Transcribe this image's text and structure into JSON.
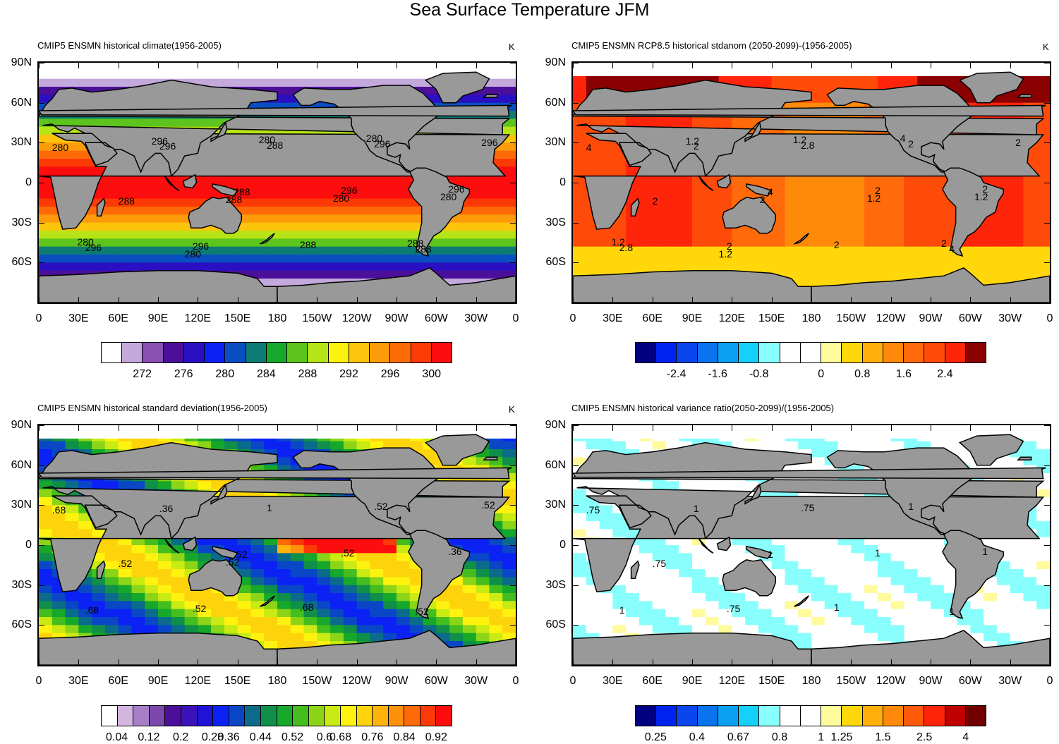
{
  "title": "Sea Surface Temperature JFM",
  "lat_ticks": [
    "90N",
    "60N",
    "30N",
    "0",
    "30S",
    "60S"
  ],
  "lon_ticks": [
    "0",
    "30E",
    "60E",
    "90E",
    "120E",
    "150E",
    "180",
    "150W",
    "120W",
    "90W",
    "60W",
    "30W",
    "0"
  ],
  "panels": [
    {
      "id": "climate",
      "title": "CMIP5 ENSMN historical climate(1956-2005)",
      "units": "K",
      "colorbar": {
        "colors": [
          "#ffffff",
          "#c4a9dc",
          "#8a4fb3",
          "#4b0f99",
          "#2b0fc2",
          "#0c22f5",
          "#0a4fc2",
          "#0c7b74",
          "#15a82a",
          "#5cc41d",
          "#b6e416",
          "#fdf20f",
          "#fdc40c",
          "#fd9b0a",
          "#fd6a07",
          "#fc3a06",
          "#fd0d0d"
        ],
        "labels": [
          "272",
          "276",
          "280",
          "284",
          "288",
          "292",
          "296",
          "300"
        ]
      },
      "contour_labels": [
        "280",
        "288",
        "288",
        "296",
        "296",
        "296",
        "288",
        "296",
        "296",
        "296",
        "288",
        "288",
        "296",
        "288",
        "288",
        "296",
        "280",
        "280",
        "280",
        "280",
        "280",
        "280"
      ]
    },
    {
      "id": "stdanom",
      "title": "CMIP5 ENSMN RCP8.5 historical stdanom (2050-2099)-(1956-2005)",
      "units": "K",
      "colorbar": {
        "colors": [
          "#000080",
          "#0022ee",
          "#0a45ee",
          "#0a73ee",
          "#0a9ff0",
          "#15d0f8",
          "#88fffd",
          "#ffffff",
          "#ffffff",
          "#fffa9a",
          "#ffd70a",
          "#ffae0a",
          "#ff8a0a",
          "#ff6a0a",
          "#ff4b0a",
          "#ff250a",
          "#8b0000"
        ],
        "labels": [
          "-2.4",
          "-1.6",
          "-0.8",
          "0",
          "0.8",
          "1.6",
          "2.4"
        ]
      },
      "contour_labels": [
        "4",
        "4",
        "4",
        "2",
        "2",
        "2.8",
        "2.8",
        "2",
        "2",
        "2",
        "2",
        "2",
        "2",
        "2",
        "2",
        "1.2",
        "1.2",
        "1.2",
        "1.2",
        "1.2",
        "1.2",
        "4"
      ]
    },
    {
      "id": "stddev",
      "title": "CMIP5 ENSMN historical standard deviation(1956-2005)",
      "units": "K",
      "colorbar": {
        "colors": [
          "#ffffff",
          "#d3b6e0",
          "#a77fc9",
          "#7d48ad",
          "#4b0f99",
          "#3a12b8",
          "#2012d6",
          "#0c22f5",
          "#0a47c6",
          "#0c6b8a",
          "#0f8f4a",
          "#15a82a",
          "#44bd1e",
          "#8bd418",
          "#c9ea12",
          "#fff20f",
          "#fdd40c",
          "#fdb30b",
          "#fd920a",
          "#fd6a07",
          "#fc3a06",
          "#fd0d0d"
        ],
        "labels": [
          "0.04",
          "0.12",
          "0.2",
          "0.28",
          "0.36",
          "0.44",
          "0.52",
          "0.6",
          "0.68",
          "0.76",
          "0.84",
          "0.92"
        ]
      },
      "contour_labels": [
        ".68",
        ".52",
        ".52",
        ".36",
        ".52",
        ".68",
        "1",
        ".36",
        ".52",
        ".52",
        ".52",
        ".68",
        ".52",
        ".52"
      ]
    },
    {
      "id": "varratio",
      "title": "CMIP5 ENSMN historical variance ratio(2050-2099)/(1956-2005)",
      "units": "",
      "colorbar": {
        "colors": [
          "#000080",
          "#0022ee",
          "#0a45ee",
          "#0a73ee",
          "#0a9ff0",
          "#15d0f8",
          "#88fffd",
          "#ffffff",
          "#ffffff",
          "#fffa9a",
          "#ffd70a",
          "#ffae0a",
          "#ff8a0a",
          "#ff5a0a",
          "#ff250a",
          "#c00000",
          "#700000"
        ],
        "labels": [
          "0.25",
          "0.4",
          "0.67",
          "0.8",
          "1",
          "1.25",
          "1.5",
          "2.5",
          "4"
        ]
      },
      "contour_labels": [
        ".75",
        "1",
        "1",
        "1",
        "1",
        "1",
        ".75",
        "1",
        ".75",
        "1",
        ".75",
        "1"
      ]
    }
  ]
}
